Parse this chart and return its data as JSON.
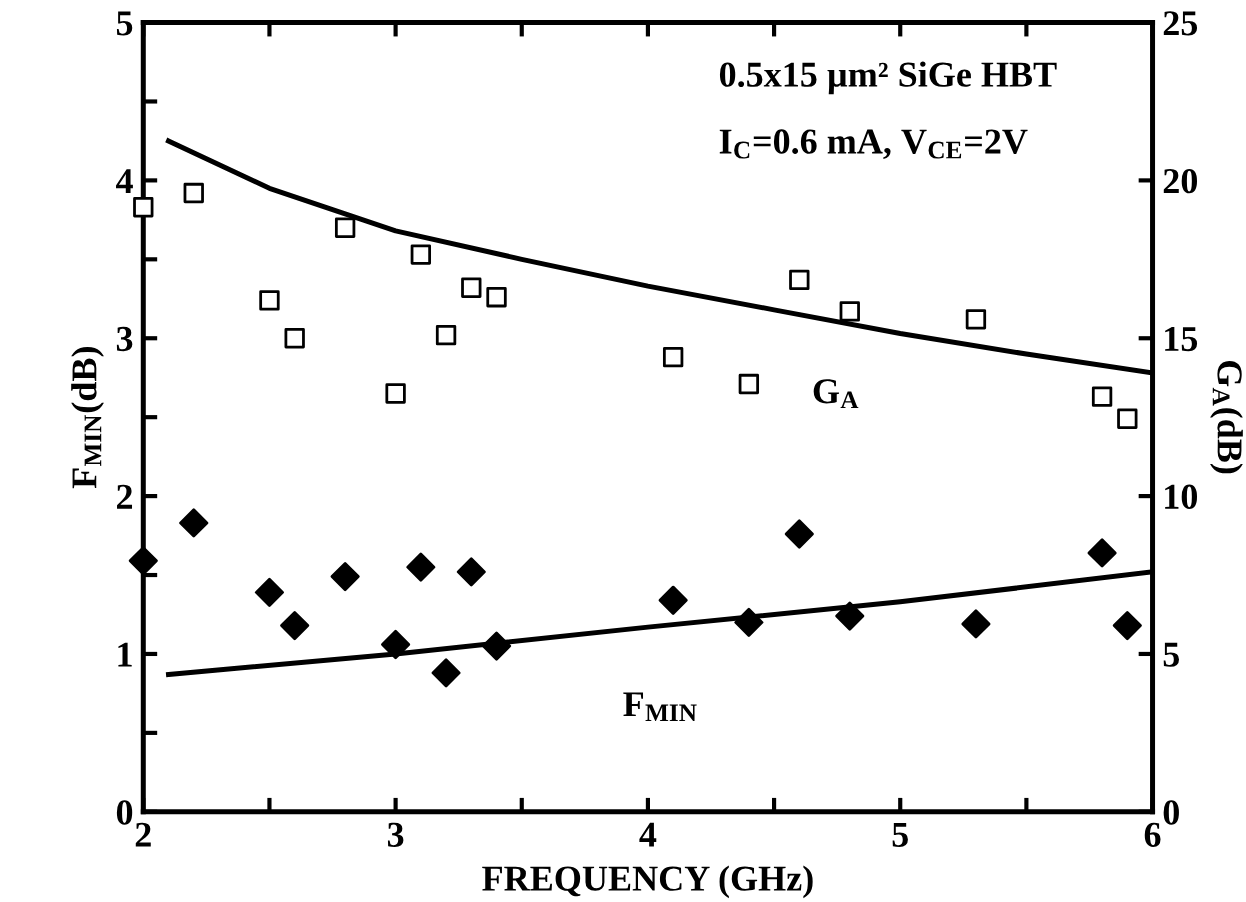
{
  "chart_data": {
    "type": "scatter",
    "xlabel": "FREQUENCY (GHz)",
    "ylabel": "F$_{MIN}$(dB)",
    "y2label": "G$_{A}$(dB)",
    "xlim": [
      2,
      6
    ],
    "xticks": [
      2,
      {
        "value": 2.5,
        "label": null
      },
      3,
      {
        "value": 3.5,
        "label": null
      },
      4,
      {
        "value": 4.5,
        "label": null
      },
      5,
      {
        "value": 5.5,
        "label": null
      },
      6
    ],
    "ylim": [
      0,
      5
    ],
    "yticks": [
      0,
      {
        "value": 0.5,
        "label": null
      },
      1,
      {
        "value": 1.5,
        "label": null
      },
      2,
      {
        "value": 2.5,
        "label": null
      },
      3,
      {
        "value": 3.5,
        "label": null
      },
      4,
      {
        "value": 4.5,
        "label": null
      },
      5
    ],
    "y2lim": [
      0,
      25
    ],
    "y2ticks": [
      0,
      5,
      10,
      15,
      20,
      25
    ],
    "grid": false,
    "legend": false,
    "annotations": [
      "0.5x15 µm² SiGe HBT",
      "I$_{C}$=0.6 mA, V$_{CE}$=2V"
    ],
    "series": [
      {
        "type": "scatter",
        "marker": "square",
        "axis": "y2",
        "color": "#000000",
        "x": [
          2.0,
          2.2,
          2.5,
          2.6,
          2.8,
          3.0,
          3.1,
          3.2,
          3.3,
          3.4,
          4.1,
          4.4,
          4.6,
          4.8,
          5.3,
          5.8,
          5.9
        ],
        "values": [
          19.15,
          19.6,
          16.2,
          15.0,
          18.5,
          13.25,
          17.65,
          15.1,
          16.6,
          16.3,
          14.4,
          13.55,
          16.85,
          15.85,
          15.6,
          13.15,
          12.45
        ]
      },
      {
        "type": "line",
        "name": "G$_{A}$",
        "marker": "none",
        "axis": "y2",
        "color": "#000000",
        "x": [
          2.1,
          2.5,
          3.0,
          3.5,
          4.0,
          4.5,
          5.0,
          5.5,
          6.0
        ],
        "values": [
          21.25,
          19.75,
          18.4,
          17.5,
          16.65,
          15.9,
          15.15,
          14.5,
          13.9
        ]
      },
      {
        "marker": "diamond",
        "color": "#000000",
        "x": [
          2.0,
          2.2,
          2.5,
          2.6,
          2.8,
          3.0,
          3.1,
          3.2,
          3.3,
          3.4,
          4.1,
          4.4,
          4.6,
          4.8,
          5.3,
          5.8,
          5.9
        ],
        "values": [
          1.59,
          1.83,
          1.39,
          1.18,
          1.49,
          1.06,
          1.55,
          0.88,
          1.52,
          1.05,
          1.34,
          1.2,
          1.76,
          1.24,
          1.19,
          1.64,
          1.18
        ]
      },
      {
        "type": "line",
        "name": "F$_{MIN}$",
        "marker": "none",
        "color": "#000000",
        "x": [
          2.1,
          3.0,
          4.0,
          5.0,
          6.0
        ],
        "values": [
          0.87,
          1.0,
          1.17,
          1.33,
          1.52
        ]
      }
    ]
  }
}
